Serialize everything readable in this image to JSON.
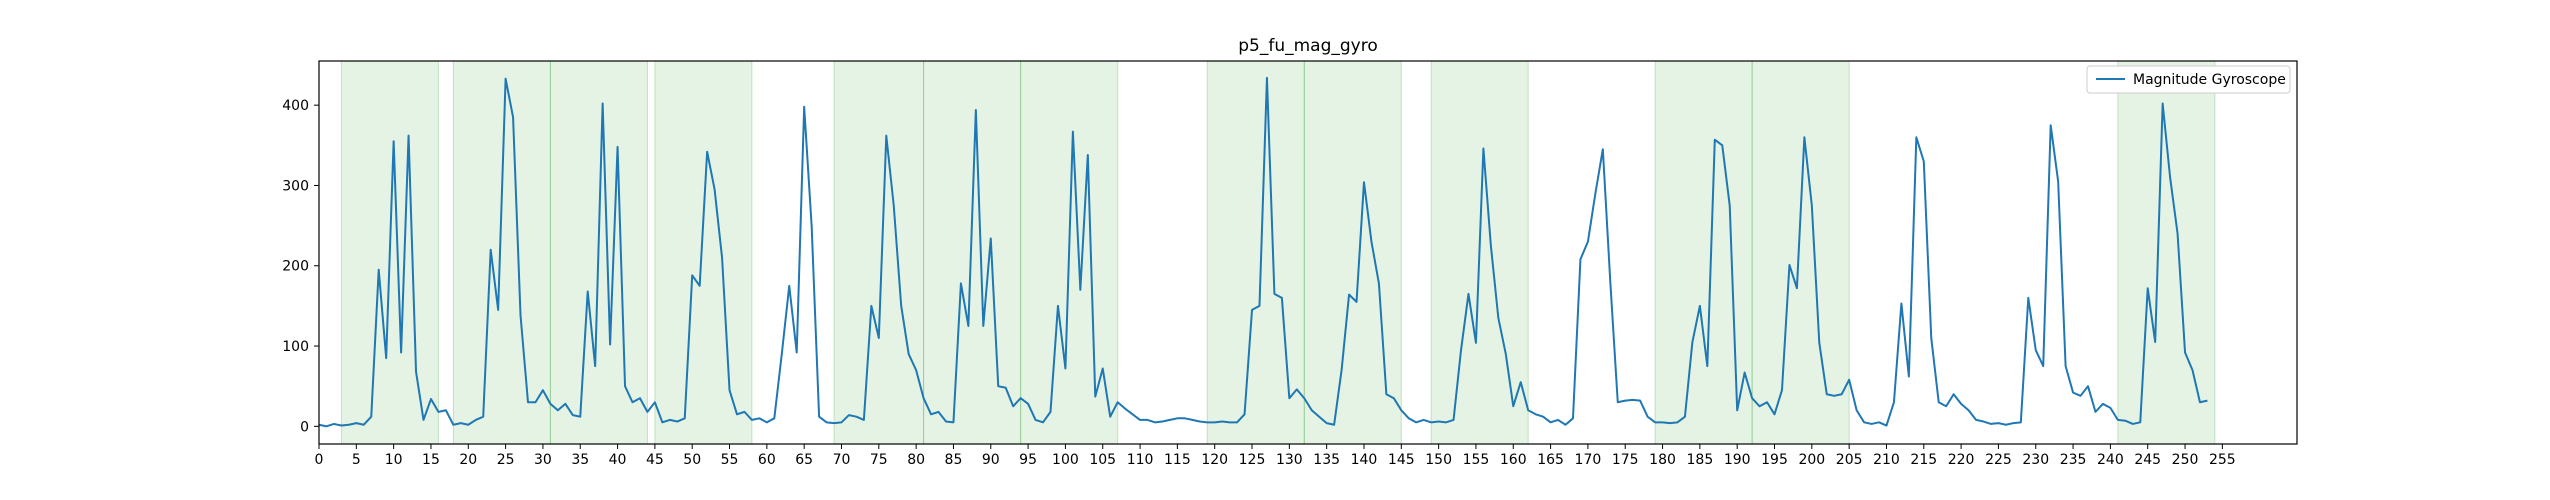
{
  "chart_data": {
    "type": "line",
    "title": "p5_fu_mag_gyro",
    "xlabel": "",
    "ylabel": "",
    "xlim": [
      0,
      265
    ],
    "ylim": [
      -22,
      455
    ],
    "xticks": [
      0,
      5,
      10,
      15,
      20,
      25,
      30,
      35,
      40,
      45,
      50,
      55,
      60,
      65,
      70,
      75,
      80,
      85,
      90,
      95,
      100,
      105,
      110,
      115,
      120,
      125,
      130,
      135,
      140,
      145,
      150,
      155,
      160,
      165,
      170,
      175,
      180,
      185,
      190,
      195,
      200,
      205,
      210,
      215,
      220,
      225,
      230,
      235,
      240,
      245,
      250,
      255
    ],
    "yticks": [
      0,
      100,
      200,
      300,
      400
    ],
    "legend": {
      "position": "top-right",
      "entries": [
        "Magnitude Gyroscope"
      ]
    },
    "grid": false,
    "colors": {
      "line": "#1f77b4",
      "span_fill": "#2ca02c",
      "span_edge": "#2ca02c"
    },
    "shaded_spans": [
      [
        3,
        16
      ],
      [
        18,
        31
      ],
      [
        31,
        44
      ],
      [
        45,
        58
      ],
      [
        69,
        81
      ],
      [
        81,
        94
      ],
      [
        94,
        107
      ],
      [
        119,
        132
      ],
      [
        132,
        145
      ],
      [
        149,
        162
      ],
      [
        179,
        192
      ],
      [
        192,
        205
      ],
      [
        241,
        254
      ]
    ],
    "series": [
      {
        "name": "Magnitude Gyroscope",
        "values": [
          2,
          0,
          3,
          1,
          2,
          4,
          2,
          12,
          195,
          85,
          355,
          92,
          362,
          68,
          8,
          34,
          18,
          20,
          2,
          4,
          2,
          8,
          12,
          220,
          145,
          433,
          385,
          138,
          30,
          30,
          45,
          28,
          20,
          28,
          14,
          12,
          168,
          75,
          402,
          102,
          348,
          50,
          30,
          35,
          18,
          30,
          5,
          8,
          6,
          10,
          188,
          175,
          342,
          295,
          210,
          45,
          15,
          18,
          8,
          10,
          5,
          10,
          90,
          175,
          92,
          398,
          250,
          12,
          5,
          4,
          5,
          14,
          12,
          8,
          150,
          110,
          362,
          275,
          150,
          90,
          70,
          35,
          15,
          18,
          6,
          5,
          178,
          125,
          394,
          125,
          234,
          50,
          48,
          25,
          35,
          28,
          8,
          5,
          18,
          150,
          72,
          367,
          170,
          338,
          37,
          72,
          12,
          30,
          22,
          15,
          8,
          8,
          5,
          6,
          8,
          10,
          10,
          8,
          6,
          5,
          5,
          6,
          5,
          5,
          15,
          145,
          150,
          434,
          165,
          160,
          35,
          46,
          35,
          20,
          12,
          4,
          2,
          70,
          164,
          155,
          304,
          230,
          178,
          40,
          35,
          20,
          10,
          5,
          8,
          5,
          6,
          5,
          8,
          95,
          165,
          104,
          346,
          225,
          135,
          90,
          25,
          55,
          20,
          15,
          12,
          5,
          8,
          2,
          10,
          208,
          230,
          290,
          345,
          180,
          30,
          32,
          33,
          32,
          12,
          5,
          5,
          4,
          5,
          12,
          105,
          150,
          75,
          357,
          350,
          275,
          20,
          67,
          35,
          25,
          30,
          15,
          45,
          201,
          172,
          360,
          275,
          104,
          40,
          38,
          40,
          58,
          20,
          5,
          3,
          5,
          1,
          30,
          153,
          62,
          360,
          330,
          110,
          30,
          25,
          40,
          28,
          20,
          8,
          6,
          3,
          4,
          2,
          4,
          5,
          160,
          95,
          75,
          375,
          305,
          75,
          42,
          38,
          50,
          18,
          28,
          23,
          8,
          7,
          3,
          5,
          172,
          105,
          402,
          310,
          240,
          92,
          70,
          30,
          32
        ]
      }
    ]
  }
}
